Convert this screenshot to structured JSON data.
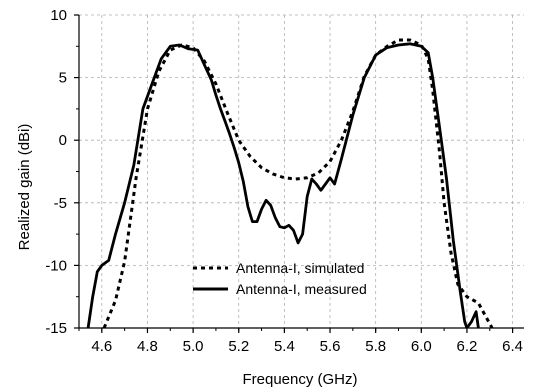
{
  "chart_data": {
    "type": "line",
    "xlabel": "Frequency (GHz)",
    "ylabel": "Realized gain (dBi)",
    "xlim": [
      4.5,
      6.45
    ],
    "ylim": [
      -15,
      10
    ],
    "xticks": [
      "4.6",
      "4.8",
      "5.0",
      "5.2",
      "5.4",
      "5.6",
      "5.8",
      "6.0",
      "6.2",
      "6.4"
    ],
    "yticks": [
      "10",
      "5",
      "0",
      "-5",
      "-10",
      "-15"
    ],
    "grid": true,
    "legend_position": "lower-center",
    "series": [
      {
        "name": "Antenna-I, simulated",
        "style": "dotted",
        "color": "#000000",
        "x": [
          4.61,
          4.66,
          4.7,
          4.75,
          4.8,
          4.85,
          4.9,
          4.95,
          5.0,
          5.05,
          5.1,
          5.15,
          5.2,
          5.25,
          5.3,
          5.35,
          5.4,
          5.45,
          5.5,
          5.55,
          5.6,
          5.65,
          5.7,
          5.75,
          5.8,
          5.85,
          5.9,
          5.95,
          6.0,
          6.03,
          6.05,
          6.08,
          6.1,
          6.13,
          6.16,
          6.2,
          6.25,
          6.28,
          6.31
        ],
        "y": [
          -15.0,
          -12.8,
          -9.7,
          -3.0,
          2.5,
          5.5,
          7.2,
          7.6,
          7.4,
          6.3,
          4.5,
          2.2,
          0.0,
          -1.3,
          -2.2,
          -2.7,
          -3.0,
          -3.1,
          -3.0,
          -2.6,
          -1.7,
          0.0,
          2.3,
          5.1,
          6.8,
          7.5,
          8.0,
          8.0,
          7.6,
          6.5,
          4.0,
          -1.0,
          -5.0,
          -9.0,
          -11.5,
          -12.5,
          -13.0,
          -14.0,
          -15.0
        ]
      },
      {
        "name": "Antenna-I, measured",
        "style": "solid",
        "color": "#000000",
        "x": [
          4.54,
          4.56,
          4.58,
          4.6,
          4.63,
          4.66,
          4.7,
          4.74,
          4.78,
          4.82,
          4.86,
          4.9,
          4.94,
          4.98,
          5.02,
          5.05,
          5.08,
          5.1,
          5.12,
          5.14,
          5.16,
          5.18,
          5.2,
          5.22,
          5.24,
          5.26,
          5.28,
          5.3,
          5.32,
          5.34,
          5.36,
          5.38,
          5.4,
          5.42,
          5.44,
          5.46,
          5.48,
          5.5,
          5.52,
          5.54,
          5.56,
          5.58,
          5.6,
          5.62,
          5.65,
          5.7,
          5.75,
          5.8,
          5.85,
          5.9,
          5.95,
          6.0,
          6.03,
          6.05,
          6.08,
          6.11,
          6.14,
          6.17,
          6.19,
          6.2,
          6.22,
          6.24,
          6.25
        ],
        "y": [
          -15.0,
          -12.5,
          -10.5,
          -10.0,
          -9.6,
          -7.5,
          -5.0,
          -2.0,
          2.5,
          4.5,
          6.5,
          7.5,
          7.6,
          7.3,
          7.2,
          6.0,
          4.8,
          3.6,
          2.5,
          1.5,
          0.5,
          -0.6,
          -1.8,
          -3.3,
          -5.3,
          -6.5,
          -6.5,
          -5.5,
          -4.8,
          -5.2,
          -6.2,
          -6.9,
          -7.0,
          -6.8,
          -7.2,
          -8.2,
          -7.5,
          -4.5,
          -3.1,
          -3.5,
          -4.0,
          -3.5,
          -3.0,
          -3.5,
          -1.5,
          2.0,
          5.0,
          6.8,
          7.4,
          7.6,
          7.7,
          7.5,
          7.0,
          5.0,
          1.0,
          -3.0,
          -8.0,
          -12.0,
          -14.5,
          -15.0,
          -14.5,
          -13.7,
          -15.0
        ]
      }
    ]
  }
}
